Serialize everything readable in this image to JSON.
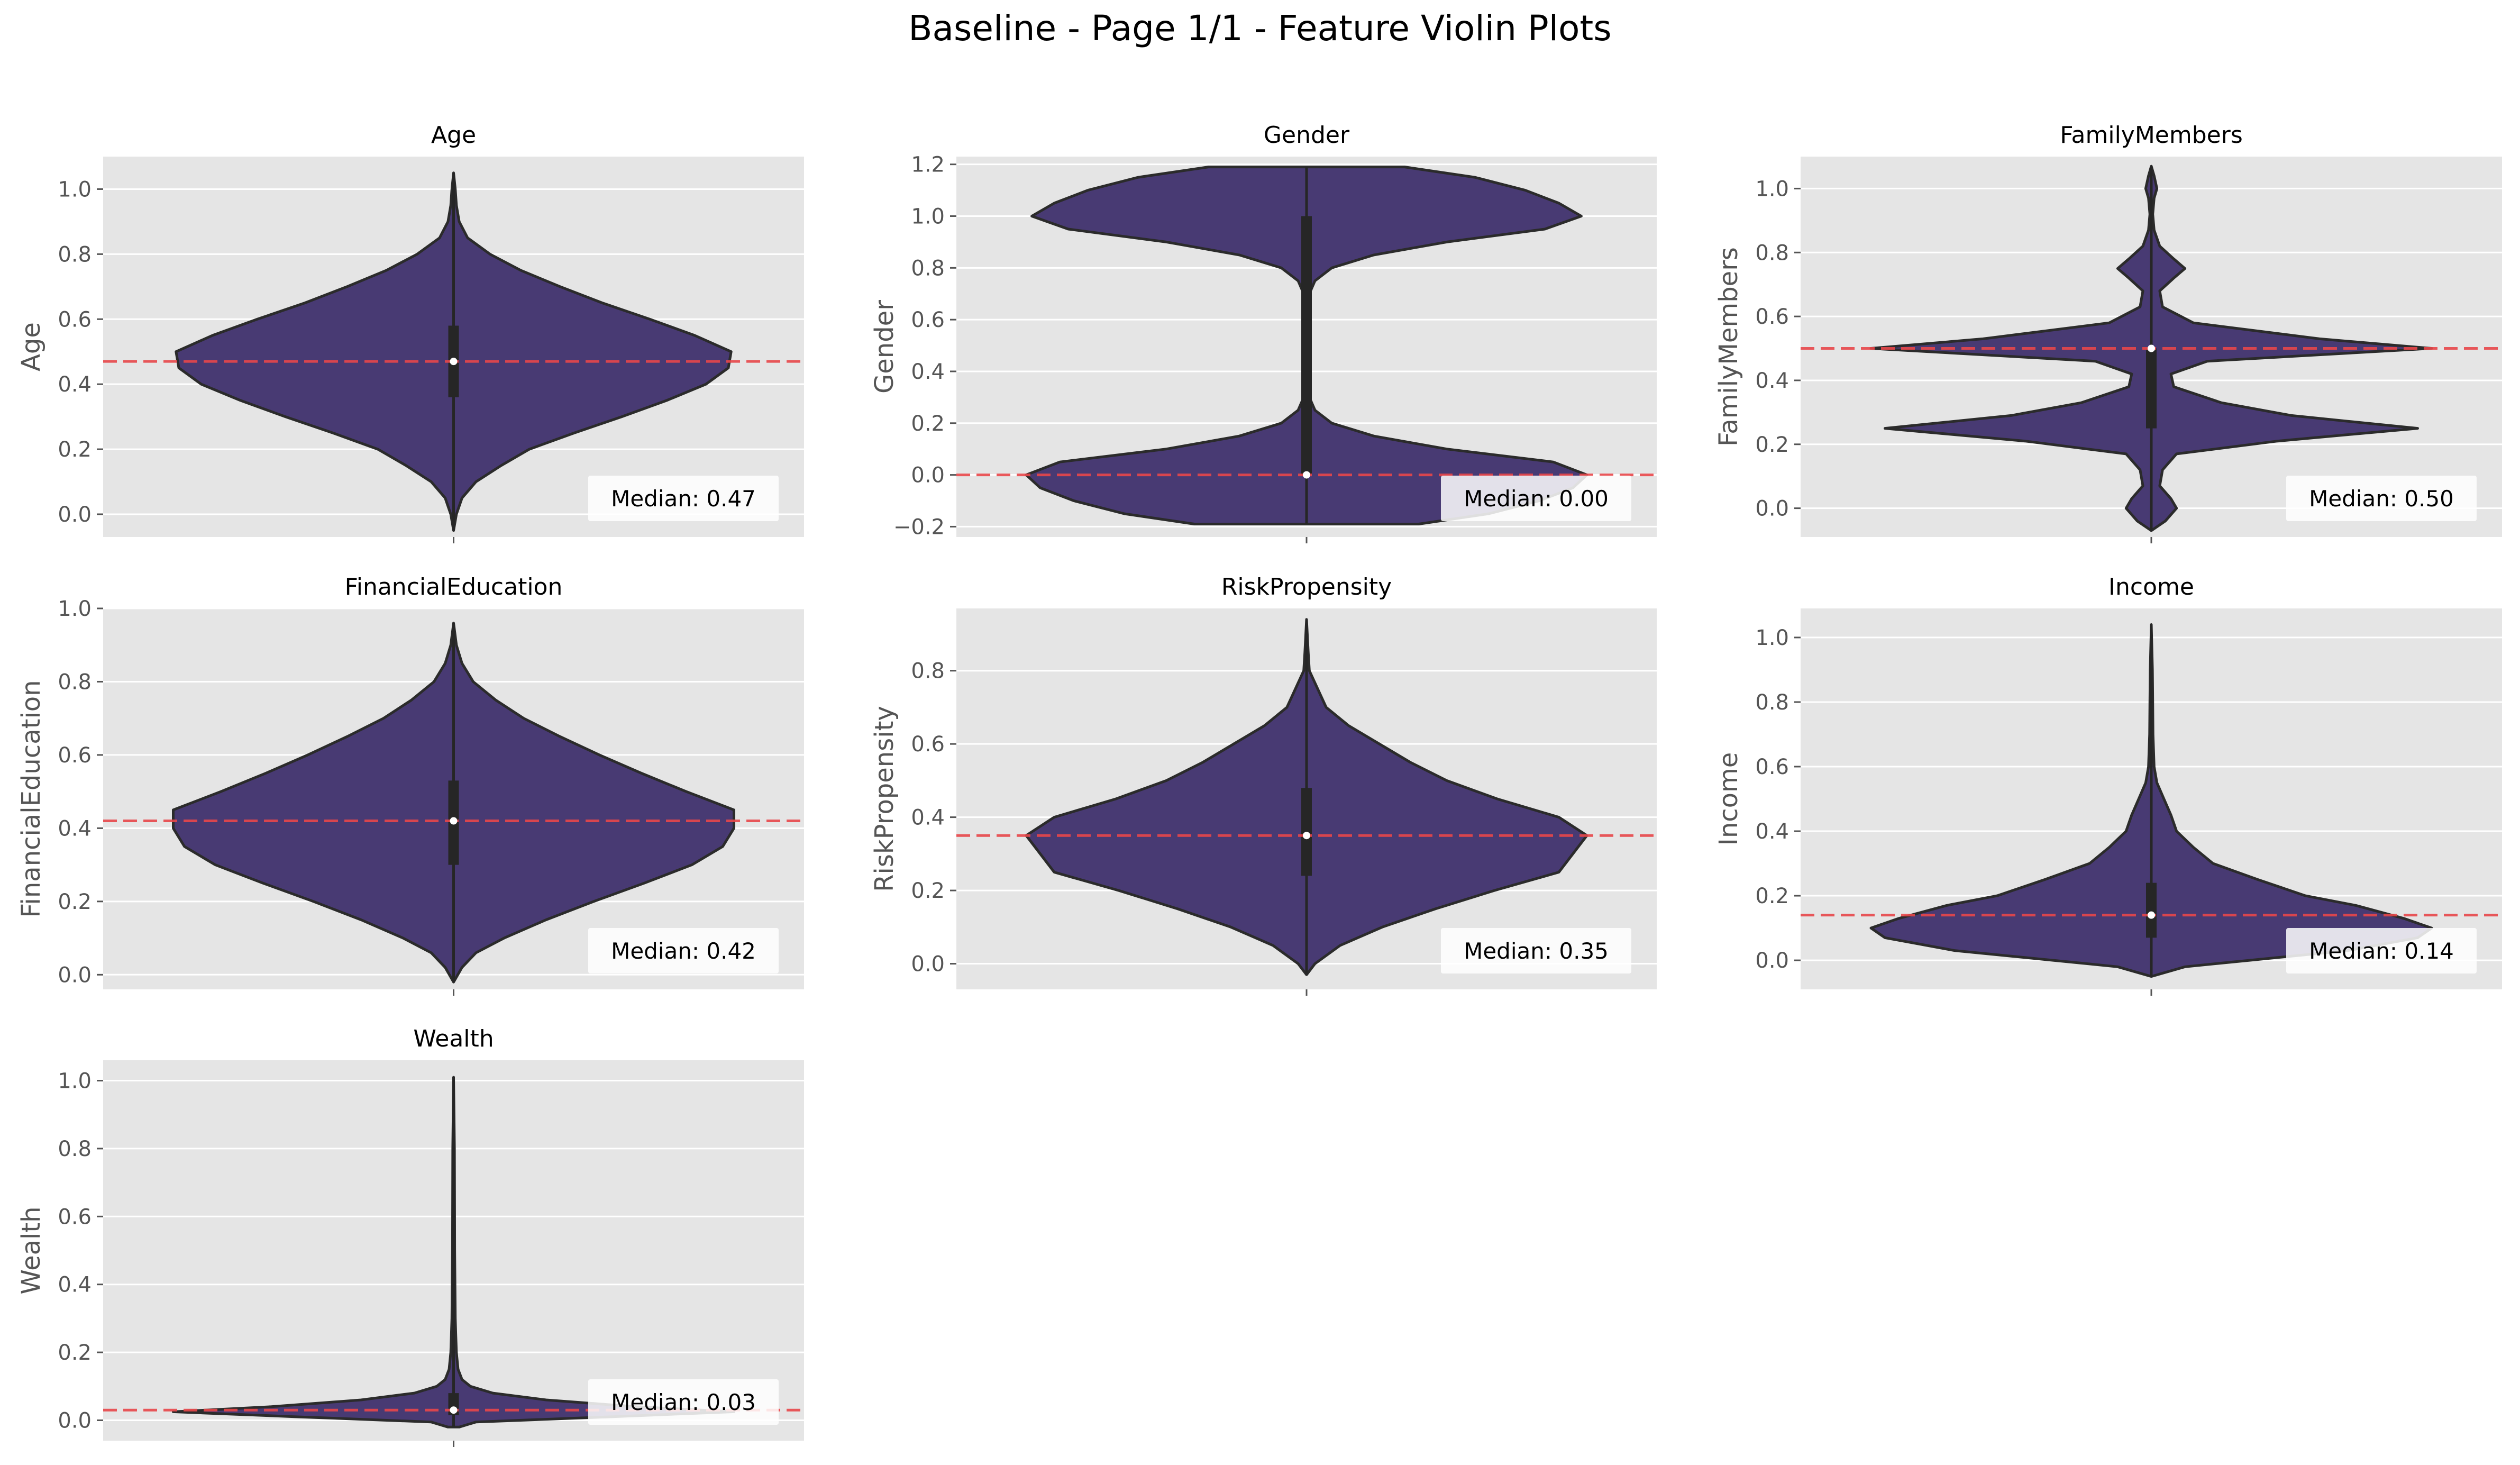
{
  "chart_data": {
    "type": "violin",
    "title": "Baseline - Page 1/1 - Feature Violin Plots",
    "median_label_prefix": "Median: ",
    "colors": {
      "violin_fill": "#483a73",
      "violin_edge": "#2b2b2b",
      "median_line": "#e8474a",
      "panel_bg": "#e5e5e5",
      "grid": "#ffffff",
      "box": "#262626",
      "median_dot": "#ffffff"
    },
    "panels": [
      {
        "title": "Age",
        "ylabel": "Age",
        "ylim": [
          -0.07,
          1.1
        ],
        "yticks": [
          "0.0",
          "0.2",
          "0.4",
          "0.6",
          "0.8",
          "1.0"
        ],
        "ytick_values": [
          0,
          0.2,
          0.4,
          0.6,
          0.8,
          1.0
        ],
        "median": 0.47,
        "median_text": "0.47",
        "q1": 0.36,
        "q3": 0.58,
        "min": -0.05,
        "max": 1.05,
        "profile": [
          [
            -0.05,
            0
          ],
          [
            0.0,
            0.01
          ],
          [
            0.05,
            0.03
          ],
          [
            0.1,
            0.08
          ],
          [
            0.15,
            0.17
          ],
          [
            0.2,
            0.27
          ],
          [
            0.25,
            0.43
          ],
          [
            0.3,
            0.6
          ],
          [
            0.35,
            0.76
          ],
          [
            0.4,
            0.9
          ],
          [
            0.45,
            0.98
          ],
          [
            0.5,
            0.99
          ],
          [
            0.55,
            0.86
          ],
          [
            0.6,
            0.7
          ],
          [
            0.65,
            0.53
          ],
          [
            0.7,
            0.38
          ],
          [
            0.75,
            0.24
          ],
          [
            0.8,
            0.13
          ],
          [
            0.85,
            0.05
          ],
          [
            0.9,
            0.02
          ],
          [
            0.95,
            0.01
          ],
          [
            1.0,
            0.006
          ],
          [
            1.05,
            0
          ]
        ]
      },
      {
        "title": "Gender",
        "ylabel": "Gender",
        "ylim": [
          -0.24,
          1.23
        ],
        "yticks": [
          "−0.2",
          "0.0",
          "0.2",
          "0.4",
          "0.6",
          "0.8",
          "1.0",
          "1.2"
        ],
        "ytick_values": [
          -0.2,
          0,
          0.2,
          0.4,
          0.6,
          0.8,
          1.0,
          1.2
        ],
        "median": 0.0,
        "median_text": "0.00",
        "q1": 0.0,
        "q3": 1.0,
        "min": -0.19,
        "max": 1.19,
        "profile": [
          [
            -0.19,
            0.4
          ],
          [
            -0.15,
            0.65
          ],
          [
            -0.1,
            0.83
          ],
          [
            -0.05,
            0.95
          ],
          [
            0.0,
            1.0
          ],
          [
            0.05,
            0.88
          ],
          [
            0.1,
            0.5
          ],
          [
            0.15,
            0.24
          ],
          [
            0.2,
            0.09
          ],
          [
            0.25,
            0.03
          ],
          [
            0.3,
            0.01
          ],
          [
            0.4,
            0.006
          ],
          [
            0.5,
            0.006
          ],
          [
            0.6,
            0.006
          ],
          [
            0.7,
            0.01
          ],
          [
            0.75,
            0.03
          ],
          [
            0.8,
            0.09
          ],
          [
            0.85,
            0.24
          ],
          [
            0.9,
            0.5
          ],
          [
            0.95,
            0.85
          ],
          [
            1.0,
            0.98
          ],
          [
            1.05,
            0.9
          ],
          [
            1.1,
            0.78
          ],
          [
            1.15,
            0.6
          ],
          [
            1.19,
            0.35
          ]
        ]
      },
      {
        "title": "FamilyMembers",
        "ylabel": "FamilyMembers",
        "ylim": [
          -0.09,
          1.1
        ],
        "yticks": [
          "0.0",
          "0.2",
          "0.4",
          "0.6",
          "0.8",
          "1.0"
        ],
        "ytick_values": [
          0,
          0.2,
          0.4,
          0.6,
          0.8,
          1.0
        ],
        "median": 0.5,
        "median_text": "0.50",
        "q1": 0.25,
        "q3": 0.5,
        "min": -0.07,
        "max": 1.07,
        "profile": [
          [
            -0.07,
            0
          ],
          [
            -0.04,
            0.05
          ],
          [
            0.0,
            0.09
          ],
          [
            0.03,
            0.07
          ],
          [
            0.07,
            0.03
          ],
          [
            0.12,
            0.04
          ],
          [
            0.17,
            0.09
          ],
          [
            0.21,
            0.45
          ],
          [
            0.25,
            0.95
          ],
          [
            0.29,
            0.5
          ],
          [
            0.33,
            0.25
          ],
          [
            0.38,
            0.08
          ],
          [
            0.42,
            0.07
          ],
          [
            0.46,
            0.2
          ],
          [
            0.5,
            1.0
          ],
          [
            0.53,
            0.6
          ],
          [
            0.58,
            0.15
          ],
          [
            0.63,
            0.04
          ],
          [
            0.68,
            0.03
          ],
          [
            0.72,
            0.08
          ],
          [
            0.75,
            0.12
          ],
          [
            0.78,
            0.08
          ],
          [
            0.82,
            0.03
          ],
          [
            0.87,
            0.01
          ],
          [
            0.92,
            0.005
          ],
          [
            0.97,
            0.01
          ],
          [
            1.0,
            0.02
          ],
          [
            1.04,
            0.01
          ],
          [
            1.07,
            0
          ]
        ]
      },
      {
        "title": "FinancialEducation",
        "ylabel": "FinancialEducation",
        "ylim": [
          -0.04,
          1.0
        ],
        "yticks": [
          "0.0",
          "0.2",
          "0.4",
          "0.6",
          "0.8",
          "1.0"
        ],
        "ytick_values": [
          0,
          0.2,
          0.4,
          0.6,
          0.8,
          1.0
        ],
        "median": 0.42,
        "median_text": "0.42",
        "q1": 0.3,
        "q3": 0.53,
        "min": -0.02,
        "max": 0.96,
        "profile": [
          [
            -0.02,
            0
          ],
          [
            0.02,
            0.03
          ],
          [
            0.06,
            0.08
          ],
          [
            0.1,
            0.18
          ],
          [
            0.15,
            0.33
          ],
          [
            0.2,
            0.5
          ],
          [
            0.25,
            0.68
          ],
          [
            0.3,
            0.85
          ],
          [
            0.35,
            0.96
          ],
          [
            0.4,
            1.0
          ],
          [
            0.45,
            1.0
          ],
          [
            0.5,
            0.83
          ],
          [
            0.55,
            0.67
          ],
          [
            0.6,
            0.52
          ],
          [
            0.65,
            0.38
          ],
          [
            0.7,
            0.25
          ],
          [
            0.75,
            0.15
          ],
          [
            0.8,
            0.07
          ],
          [
            0.85,
            0.03
          ],
          [
            0.9,
            0.01
          ],
          [
            0.96,
            0
          ]
        ]
      },
      {
        "title": "RiskPropensity",
        "ylabel": "RiskPropensity",
        "ylim": [
          -0.07,
          0.97
        ],
        "yticks": [
          "0.0",
          "0.2",
          "0.4",
          "0.6",
          "0.8"
        ],
        "ytick_values": [
          0,
          0.2,
          0.4,
          0.6,
          0.8
        ],
        "median": 0.35,
        "median_text": "0.35",
        "q1": 0.24,
        "q3": 0.48,
        "min": -0.03,
        "max": 0.94,
        "profile": [
          [
            -0.03,
            0
          ],
          [
            0.0,
            0.03
          ],
          [
            0.05,
            0.12
          ],
          [
            0.1,
            0.27
          ],
          [
            0.15,
            0.46
          ],
          [
            0.2,
            0.67
          ],
          [
            0.25,
            0.9
          ],
          [
            0.3,
            0.95
          ],
          [
            0.35,
            1.0
          ],
          [
            0.4,
            0.9
          ],
          [
            0.45,
            0.68
          ],
          [
            0.5,
            0.5
          ],
          [
            0.55,
            0.37
          ],
          [
            0.6,
            0.26
          ],
          [
            0.65,
            0.15
          ],
          [
            0.7,
            0.07
          ],
          [
            0.75,
            0.04
          ],
          [
            0.8,
            0.01
          ],
          [
            0.85,
            0.006
          ],
          [
            0.94,
            0
          ]
        ]
      },
      {
        "title": "Income",
        "ylabel": "Income",
        "ylim": [
          -0.09,
          1.09
        ],
        "yticks": [
          "0.0",
          "0.2",
          "0.4",
          "0.6",
          "0.8",
          "1.0"
        ],
        "ytick_values": [
          0,
          0.2,
          0.4,
          0.6,
          0.8,
          1.0
        ],
        "median": 0.14,
        "median_text": "0.14",
        "q1": 0.07,
        "q3": 0.24,
        "min": -0.05,
        "max": 1.04,
        "profile": [
          [
            -0.05,
            0
          ],
          [
            -0.02,
            0.12
          ],
          [
            0.0,
            0.35
          ],
          [
            0.03,
            0.7
          ],
          [
            0.07,
            0.95
          ],
          [
            0.1,
            1.0
          ],
          [
            0.13,
            0.9
          ],
          [
            0.17,
            0.73
          ],
          [
            0.2,
            0.55
          ],
          [
            0.25,
            0.38
          ],
          [
            0.3,
            0.22
          ],
          [
            0.35,
            0.15
          ],
          [
            0.4,
            0.09
          ],
          [
            0.45,
            0.07
          ],
          [
            0.5,
            0.045
          ],
          [
            0.55,
            0.02
          ],
          [
            0.6,
            0.01
          ],
          [
            0.7,
            0.006
          ],
          [
            0.8,
            0.005
          ],
          [
            0.9,
            0.004
          ],
          [
            1.04,
            0
          ]
        ]
      },
      {
        "title": "Wealth",
        "ylabel": "Wealth",
        "ylim": [
          -0.06,
          1.06
        ],
        "yticks": [
          "0.0",
          "0.2",
          "0.4",
          "0.6",
          "0.8",
          "1.0"
        ],
        "ytick_values": [
          0,
          0.2,
          0.4,
          0.6,
          0.8,
          1.0
        ],
        "median": 0.03,
        "median_text": "0.03",
        "q1": 0.015,
        "q3": 0.08,
        "min": -0.02,
        "max": 1.01,
        "profile": [
          [
            -0.02,
            0.02
          ],
          [
            -0.005,
            0.08
          ],
          [
            0.01,
            0.55
          ],
          [
            0.025,
            1.0
          ],
          [
            0.04,
            0.65
          ],
          [
            0.06,
            0.33
          ],
          [
            0.08,
            0.14
          ],
          [
            0.1,
            0.06
          ],
          [
            0.12,
            0.03
          ],
          [
            0.15,
            0.016
          ],
          [
            0.2,
            0.01
          ],
          [
            0.25,
            0.008
          ],
          [
            0.3,
            0.006
          ],
          [
            0.5,
            0.004
          ],
          [
            0.8,
            0.003
          ],
          [
            1.01,
            0
          ]
        ]
      }
    ]
  }
}
